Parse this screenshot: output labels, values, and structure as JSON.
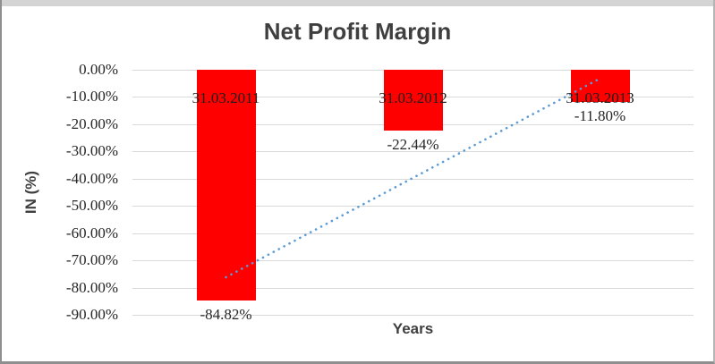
{
  "chart_data": {
    "type": "bar",
    "title": "Net Profit Margin",
    "xlabel": "Years",
    "ylabel": "IN (%)",
    "categories": [
      "31.03.2011",
      "31.03.2012",
      "31.03.2013"
    ],
    "values": [
      -84.82,
      -22.44,
      -11.8
    ],
    "data_labels": [
      "-84.82%",
      "-22.44%",
      "-11.80%"
    ],
    "y_ticks": [
      "0.00%",
      "-10.00%",
      "-20.00%",
      "-30.00%",
      "-40.00%",
      "-50.00%",
      "-60.00%",
      "-70.00%",
      "-80.00%",
      "-90.00%"
    ],
    "ylim": [
      -90,
      0
    ],
    "grid": true,
    "legend": "none",
    "bar_color": "#FF0000",
    "gridline_color": "#D9D9D9",
    "trendline": {
      "type": "linear",
      "style": "dotted",
      "color": "#5B9BD5",
      "start_value": -76.2,
      "end_value": -3.2
    }
  },
  "colors": {
    "title_text": "#3F3F3F",
    "axis_title_text": "#3F3F3F",
    "tick_label_text": "#262626",
    "category_label_text": "#1F1F1F",
    "data_label_text": "#262626",
    "frame_border": "#8F8F8F",
    "top_strip": "#D4D4D4",
    "background": "#FFFFFF"
  }
}
